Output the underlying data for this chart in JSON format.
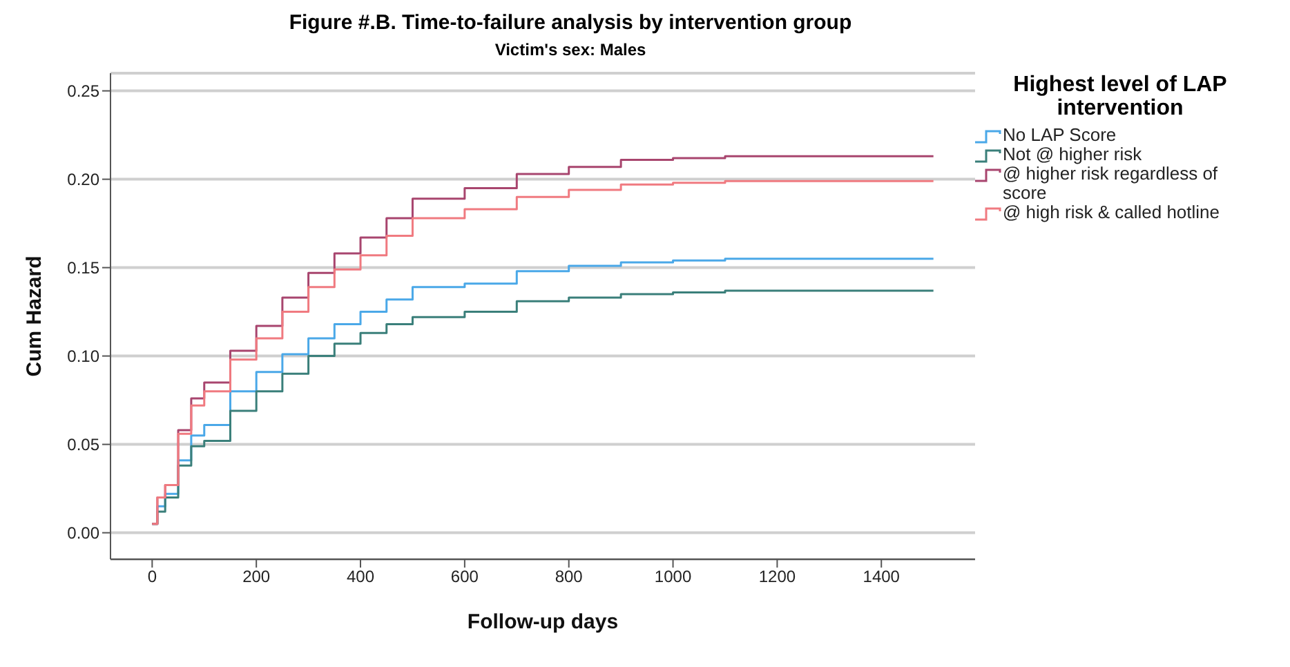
{
  "chart_data": {
    "type": "step",
    "title": "Figure #.B. Time-to-failure analysis by intervention group",
    "subtitle": "Victim's sex: Males",
    "xlabel": "Follow-up days",
    "ylabel": "Cum Hazard",
    "legend_title": "Highest level of LAP intervention",
    "x": [
      0,
      10,
      25,
      50,
      75,
      100,
      150,
      200,
      250,
      300,
      350,
      400,
      450,
      500,
      600,
      700,
      800,
      900,
      1000,
      1100,
      1500
    ],
    "series": [
      {
        "name": "No LAP Score",
        "color": "#4aa8e8",
        "values": [
          0.005,
          0.015,
          0.022,
          0.041,
          0.055,
          0.061,
          0.08,
          0.091,
          0.101,
          0.11,
          0.118,
          0.125,
          0.132,
          0.139,
          0.141,
          0.148,
          0.151,
          0.153,
          0.154,
          0.155,
          0.155
        ]
      },
      {
        "name": "Not @ higher risk",
        "color": "#3a7f7a",
        "values": [
          0.005,
          0.012,
          0.02,
          0.038,
          0.049,
          0.052,
          0.069,
          0.08,
          0.09,
          0.1,
          0.107,
          0.113,
          0.118,
          0.122,
          0.125,
          0.131,
          0.133,
          0.135,
          0.136,
          0.137,
          0.137
        ]
      },
      {
        "name": "@ higher risk regardless of score",
        "color": "#a8456e",
        "values": [
          0.005,
          0.02,
          0.027,
          0.058,
          0.076,
          0.085,
          0.103,
          0.117,
          0.133,
          0.147,
          0.158,
          0.167,
          0.178,
          0.189,
          0.195,
          0.203,
          0.207,
          0.211,
          0.212,
          0.213,
          0.213
        ]
      },
      {
        "name": "@ high risk & called hotline",
        "color": "#f07a80",
        "values": [
          0.005,
          0.02,
          0.027,
          0.056,
          0.072,
          0.08,
          0.098,
          0.11,
          0.125,
          0.139,
          0.149,
          0.157,
          0.168,
          0.178,
          0.183,
          0.19,
          0.194,
          0.197,
          0.198,
          0.199,
          0.199
        ]
      }
    ],
    "xlim": [
      -80,
      1580
    ],
    "xticks": [
      0,
      200,
      400,
      600,
      800,
      1000,
      1200,
      1400
    ],
    "ylim": [
      -0.015,
      0.26
    ],
    "yticks": [
      {
        "value": 0,
        "label": "0.00"
      },
      0.05,
      {
        "value": 0.1,
        "label": "0.10"
      },
      0.15,
      {
        "value": 0.2,
        "label": "0.20"
      },
      0.25
    ],
    "grid": "y",
    "legend": "right",
    "marker": "none",
    "line_style": "solid"
  }
}
